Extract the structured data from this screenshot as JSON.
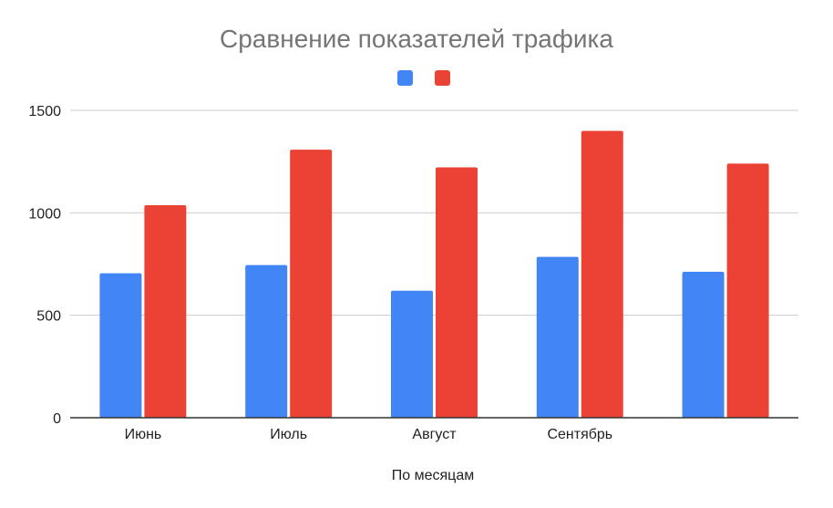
{
  "chart_data": {
    "type": "bar",
    "title": "Сравнение показателей трафика",
    "xlabel": "По месяцам",
    "ylabel": "",
    "categories": [
      "Июнь",
      "Июль",
      "Август",
      "Сентябрь",
      ""
    ],
    "series": [
      {
        "color": "#4285F4",
        "values": [
          705,
          745,
          620,
          785,
          712
        ]
      },
      {
        "color": "#EA4335",
        "values": [
          1037,
          1308,
          1222,
          1400,
          1240
        ]
      }
    ],
    "ylim": [
      0,
      1500
    ],
    "yticks": [
      0,
      500,
      1000,
      1500
    ],
    "ytick_labels": [
      "0",
      "500",
      "1000",
      "1500"
    ],
    "grid": true,
    "legend": "top-center"
  }
}
